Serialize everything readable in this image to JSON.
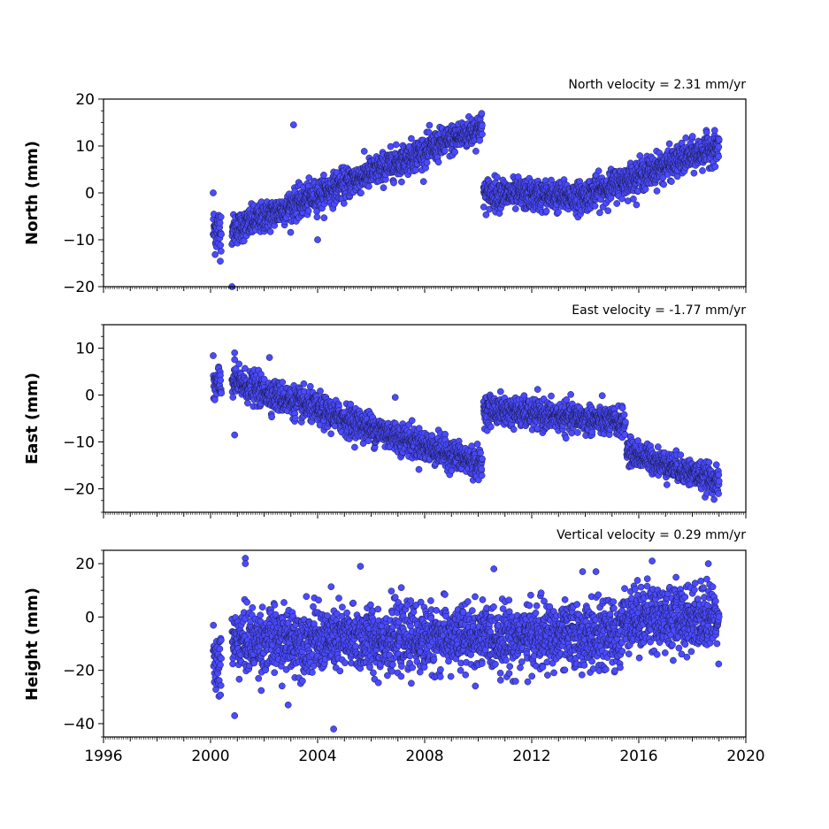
{
  "chart_data": [
    {
      "type": "scatter",
      "title": "North velocity = 2.31 mm/yr",
      "ylabel": "North (mm)",
      "xlim": [
        1996,
        2020
      ],
      "ylim": [
        -20,
        20
      ],
      "yticks": [
        -20,
        -10,
        0,
        10,
        20
      ],
      "marker_color": "#4a4aff",
      "segments": [
        {
          "x": [
            2000.1,
            2000.4
          ],
          "y_start": -8,
          "y_end": -8,
          "noise": 2.5
        },
        {
          "x": [
            2000.8,
            2010.15
          ],
          "y_start": -8,
          "y_end": 14,
          "noise": 1.6
        },
        {
          "x": [
            2010.2,
            2013.8
          ],
          "y_start": 0,
          "y_end": -1,
          "noise": 1.6
        },
        {
          "x": [
            2013.8,
            2019.0
          ],
          "y_start": -1,
          "y_end": 10,
          "noise": 1.6
        }
      ],
      "outliers": [
        [
          2003.1,
          14.5
        ],
        [
          2000.8,
          -20
        ],
        [
          2004.0,
          -10
        ],
        [
          2000.1,
          0
        ]
      ]
    },
    {
      "type": "scatter",
      "title": "East velocity = -1.77 mm/yr",
      "ylabel": "East (mm)",
      "xlim": [
        1996,
        2020
      ],
      "ylim": [
        -25,
        15
      ],
      "yticks": [
        -20,
        -10,
        0,
        10
      ],
      "marker_color": "#4a4aff",
      "segments": [
        {
          "x": [
            2000.1,
            2000.4
          ],
          "y_start": 2,
          "y_end": 2,
          "noise": 2.2
        },
        {
          "x": [
            2000.8,
            2010.15
          ],
          "y_start": 3,
          "y_end": -15,
          "noise": 1.6
        },
        {
          "x": [
            2010.2,
            2015.5
          ],
          "y_start": -3,
          "y_end": -6,
          "noise": 1.5
        },
        {
          "x": [
            2015.55,
            2019.0
          ],
          "y_start": -12,
          "y_end": -18.5,
          "noise": 1.4
        }
      ],
      "outliers": [
        [
          2000.9,
          9
        ],
        [
          2000.9,
          -8.5
        ],
        [
          2006.9,
          -0.5
        ],
        [
          2002.2,
          8
        ]
      ]
    },
    {
      "type": "scatter",
      "title": "Vertical velocity = 0.29 mm/yr",
      "ylabel": "Height (mm)",
      "xlim": [
        1996,
        2020
      ],
      "ylim": [
        -45,
        25
      ],
      "yticks": [
        -40,
        -20,
        0,
        20
      ],
      "xticks": [
        1996,
        2000,
        2004,
        2008,
        2012,
        2016,
        2020
      ],
      "marker_color": "#4a4aff",
      "segments": [
        {
          "x": [
            2000.1,
            2000.4
          ],
          "y_start": -18,
          "y_end": -18,
          "noise": 6
        },
        {
          "x": [
            2000.8,
            2015.4
          ],
          "y_start": -9,
          "y_end": -7,
          "noise": 6
        },
        {
          "x": [
            2015.4,
            2019.0
          ],
          "y_start": 0,
          "y_end": 0,
          "noise": 6
        }
      ],
      "outliers": [
        [
          2001.3,
          22
        ],
        [
          2001.3,
          20
        ],
        [
          2005.6,
          19
        ],
        [
          2016.5,
          21
        ],
        [
          2018.6,
          20
        ],
        [
          2000.9,
          -37
        ],
        [
          2004.6,
          -42
        ],
        [
          2002.9,
          -33
        ],
        [
          2014.4,
          17
        ],
        [
          2013.9,
          17
        ]
      ]
    }
  ]
}
